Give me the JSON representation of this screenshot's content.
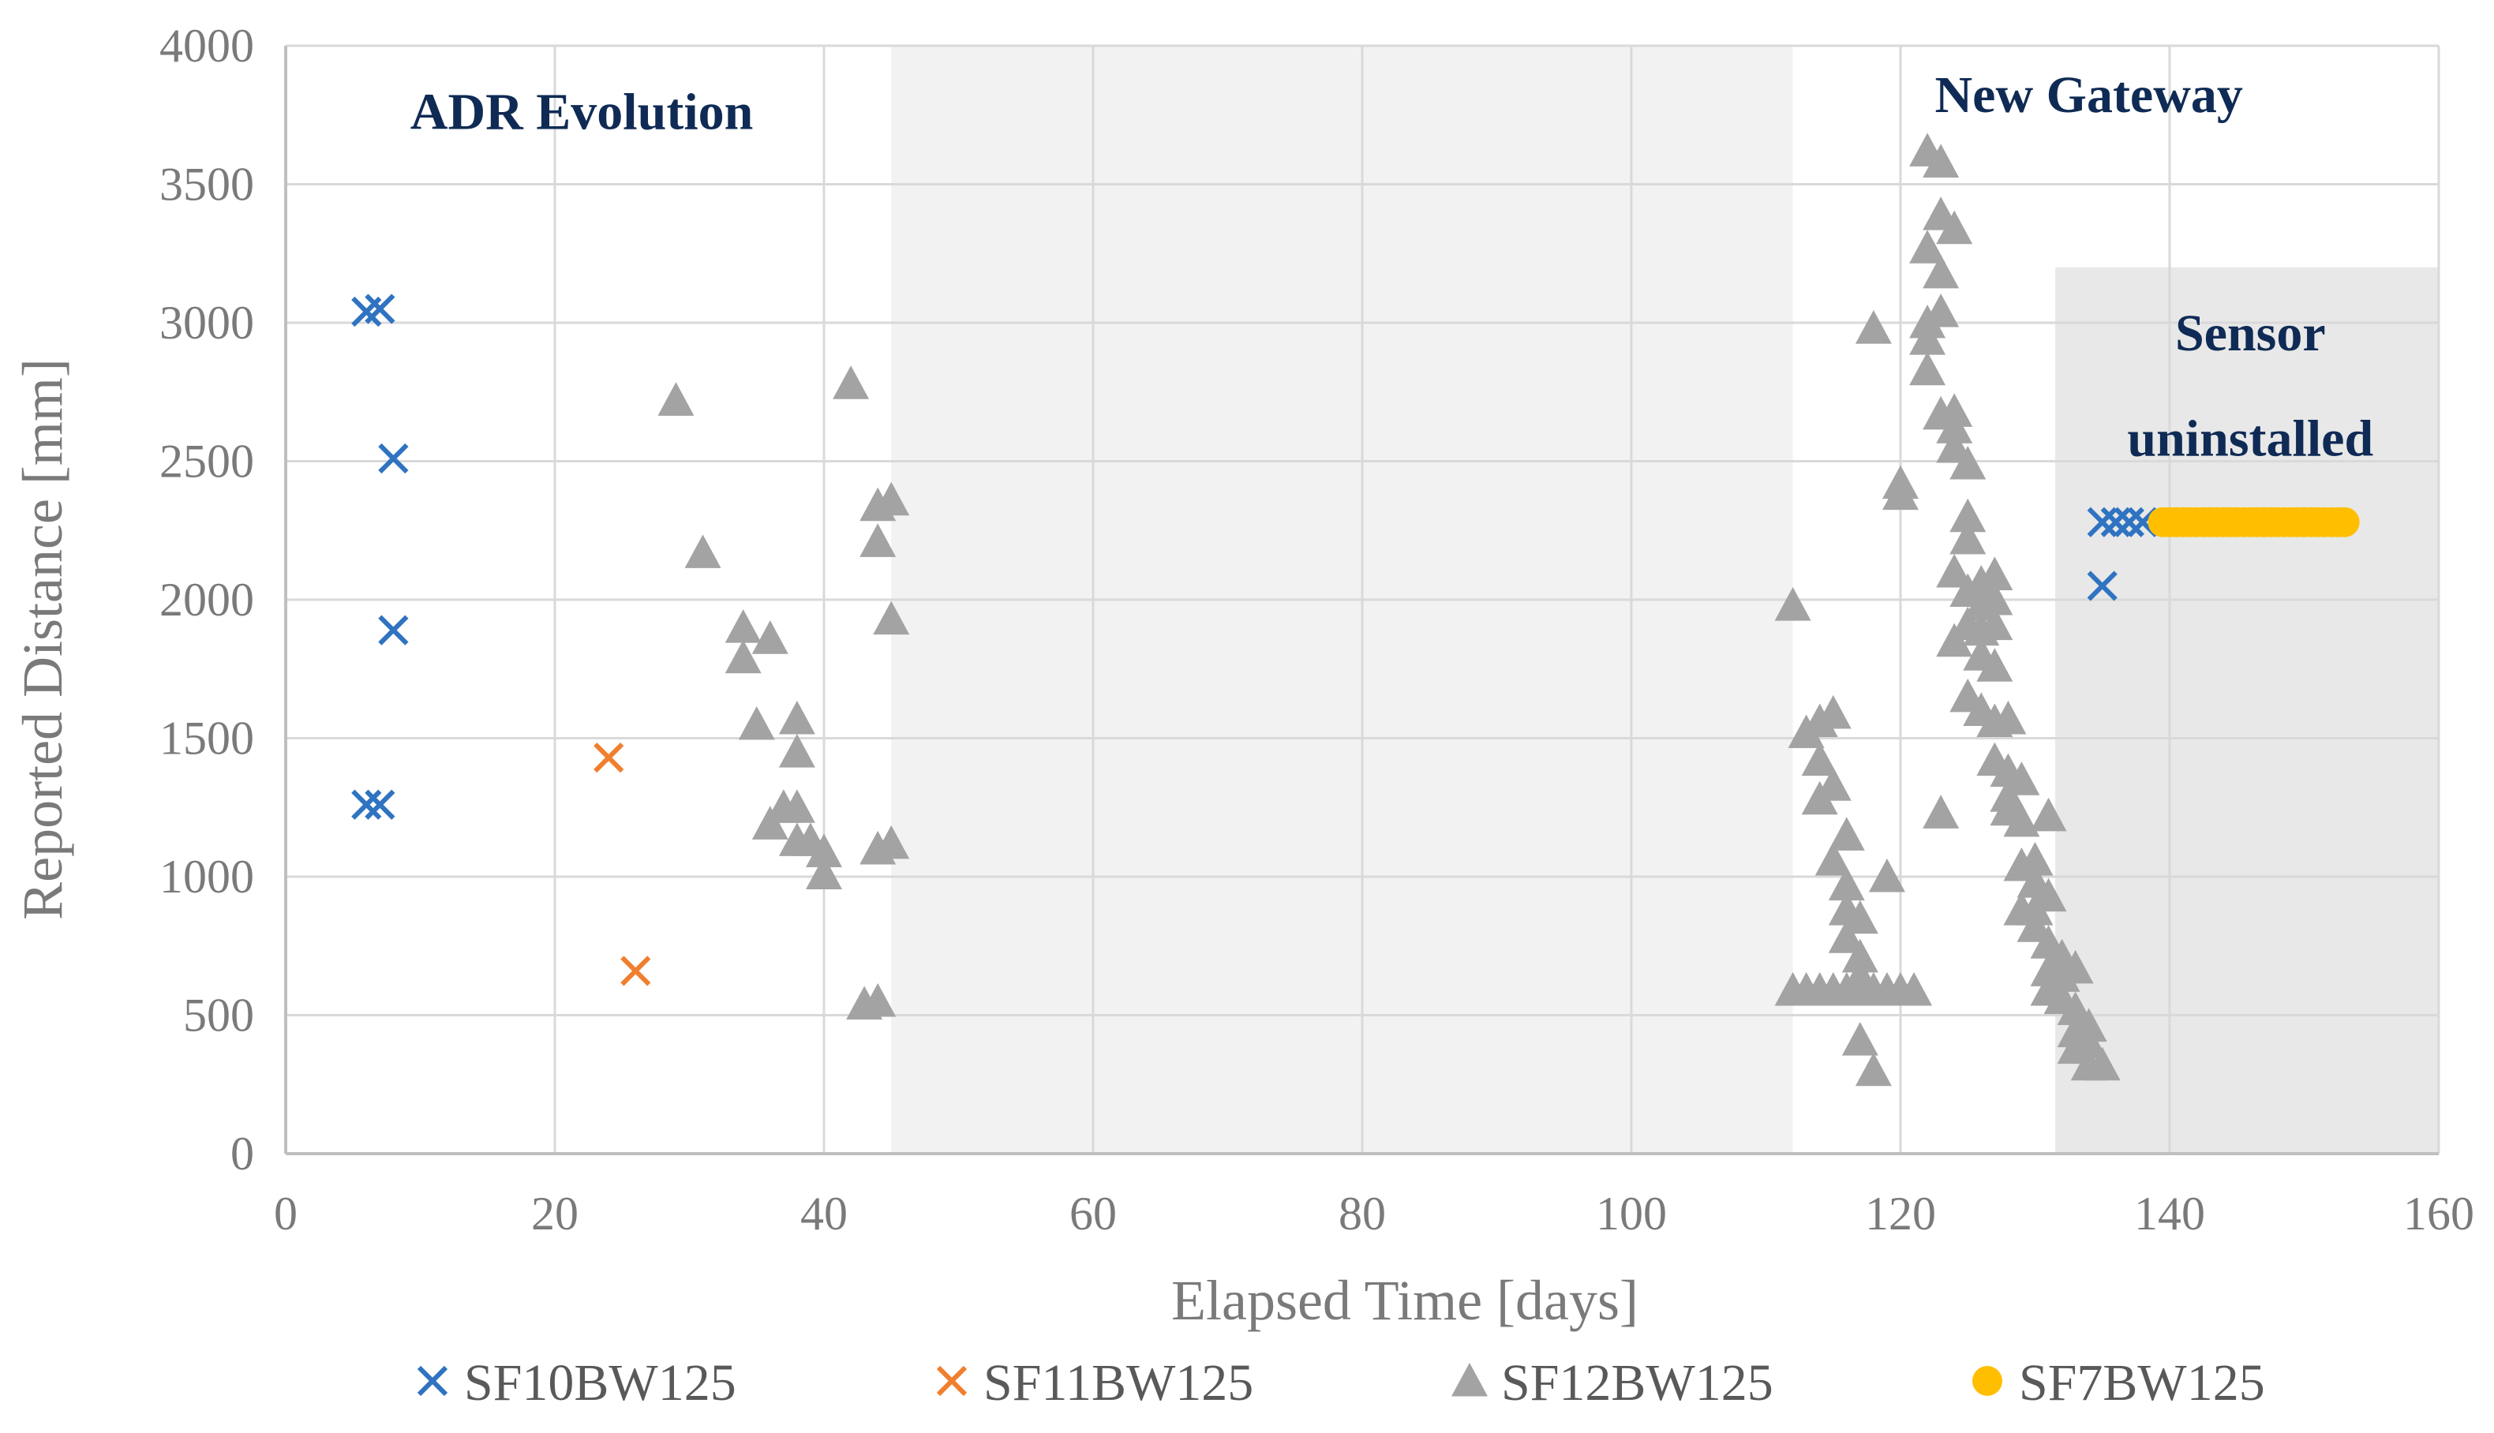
{
  "chart_data": {
    "type": "scatter",
    "xlabel": "Elapsed Time [days]",
    "ylabel": "Reported Distance [mm]",
    "xlim": [
      0,
      160
    ],
    "ylim": [
      0,
      4000
    ],
    "x_ticks": [
      0,
      20,
      40,
      60,
      80,
      100,
      120,
      140,
      160
    ],
    "y_ticks": [
      0,
      500,
      1000,
      1500,
      2000,
      2500,
      3000,
      3500,
      4000
    ],
    "grid": true,
    "legend_position": "bottom",
    "shaded_regions": [
      {
        "x": [
          45,
          112
        ],
        "y": [
          0,
          4000
        ],
        "color": "#f2f2f2"
      },
      {
        "x": [
          131.5,
          160
        ],
        "y": [
          0,
          3200
        ],
        "color": "#e8e8e8"
      }
    ],
    "annotations": [
      {
        "text": "ADR Evolution",
        "x": 22,
        "y": 3700
      },
      {
        "text": "New Gateway",
        "x": 134,
        "y": 3760
      },
      {
        "text": "Sensor",
        "x": 146,
        "y": 2900
      },
      {
        "text": "uninstalled",
        "x": 146,
        "y": 2520
      }
    ],
    "series": [
      {
        "name": "SF10BW125",
        "marker": "x",
        "color": "#2f73c1",
        "points": [
          [
            6,
            3040
          ],
          [
            7,
            3050
          ],
          [
            8,
            2510
          ],
          [
            8,
            1890
          ],
          [
            6,
            1260
          ],
          [
            7,
            1260
          ],
          [
            135,
            2280
          ],
          [
            136,
            2280
          ],
          [
            137,
            2280
          ],
          [
            138,
            2280
          ],
          [
            135,
            2050
          ]
        ]
      },
      {
        "name": "SF11BW125",
        "marker": "x",
        "color": "#f07f2e",
        "points": [
          [
            24,
            1430
          ],
          [
            26,
            660
          ]
        ]
      },
      {
        "name": "SF12BW125",
        "marker": "triangle",
        "color": "#a3a3a3",
        "points": [
          [
            29,
            2720
          ],
          [
            31,
            2170
          ],
          [
            34,
            1900
          ],
          [
            34,
            1790
          ],
          [
            35,
            1550
          ],
          [
            36,
            1860
          ],
          [
            36,
            1190
          ],
          [
            37,
            1250
          ],
          [
            38,
            1570
          ],
          [
            38,
            1450
          ],
          [
            38,
            1250
          ],
          [
            38,
            1130
          ],
          [
            39,
            1130
          ],
          [
            40,
            1090
          ],
          [
            40,
            1010
          ],
          [
            42,
            2780
          ],
          [
            43,
            540
          ],
          [
            44,
            550
          ],
          [
            44,
            2340
          ],
          [
            44,
            2210
          ],
          [
            44,
            1100
          ],
          [
            45,
            2360
          ],
          [
            45,
            1930
          ],
          [
            45,
            1120
          ],
          [
            112,
            1980
          ],
          [
            112,
            590
          ],
          [
            113,
            590
          ],
          [
            113,
            1520
          ],
          [
            114,
            1560
          ],
          [
            114,
            1420
          ],
          [
            114,
            1280
          ],
          [
            114,
            590
          ],
          [
            115,
            1590
          ],
          [
            115,
            1330
          ],
          [
            115,
            1060
          ],
          [
            115,
            590
          ],
          [
            116,
            1150
          ],
          [
            116,
            970
          ],
          [
            116,
            880
          ],
          [
            116,
            780
          ],
          [
            116,
            590
          ],
          [
            117,
            850
          ],
          [
            117,
            710
          ],
          [
            117,
            640
          ],
          [
            117,
            590
          ],
          [
            117,
            410
          ],
          [
            118,
            300
          ],
          [
            118,
            2980
          ],
          [
            118,
            590
          ],
          [
            119,
            1000
          ],
          [
            119,
            590
          ],
          [
            120,
            2420
          ],
          [
            120,
            2380
          ],
          [
            120,
            590
          ],
          [
            121,
            590
          ],
          [
            122,
            3620
          ],
          [
            122,
            3270
          ],
          [
            122,
            3000
          ],
          [
            122,
            2940
          ],
          [
            122,
            2830
          ],
          [
            123,
            3580
          ],
          [
            123,
            3390
          ],
          [
            123,
            3180
          ],
          [
            123,
            3040
          ],
          [
            123,
            2670
          ],
          [
            123,
            1230
          ],
          [
            124,
            3340
          ],
          [
            124,
            2680
          ],
          [
            124,
            2620
          ],
          [
            124,
            2550
          ],
          [
            124,
            2100
          ],
          [
            124,
            1850
          ],
          [
            125,
            2490
          ],
          [
            125,
            2300
          ],
          [
            125,
            2220
          ],
          [
            125,
            2030
          ],
          [
            125,
            1910
          ],
          [
            125,
            1650
          ],
          [
            126,
            2060
          ],
          [
            126,
            1980
          ],
          [
            126,
            1890
          ],
          [
            126,
            1800
          ],
          [
            126,
            1600
          ],
          [
            127,
            2090
          ],
          [
            127,
            2000
          ],
          [
            127,
            1910
          ],
          [
            127,
            1760
          ],
          [
            127,
            1560
          ],
          [
            127,
            1420
          ],
          [
            128,
            1570
          ],
          [
            128,
            1380
          ],
          [
            128,
            1290
          ],
          [
            128,
            1240
          ],
          [
            129,
            1350
          ],
          [
            129,
            1200
          ],
          [
            129,
            1040
          ],
          [
            129,
            880
          ],
          [
            130,
            1060
          ],
          [
            130,
            980
          ],
          [
            130,
            880
          ],
          [
            130,
            820
          ],
          [
            131,
            1220
          ],
          [
            131,
            930
          ],
          [
            131,
            760
          ],
          [
            131,
            660
          ],
          [
            131,
            590
          ],
          [
            132,
            710
          ],
          [
            132,
            640
          ],
          [
            132,
            560
          ],
          [
            133,
            670
          ],
          [
            133,
            520
          ],
          [
            133,
            440
          ],
          [
            133,
            380
          ],
          [
            134,
            460
          ],
          [
            134,
            400
          ],
          [
            134,
            320
          ],
          [
            135,
            320
          ]
        ]
      },
      {
        "name": "SF7BW125",
        "marker": "circle",
        "color": "#ffbf00",
        "points": [
          [
            139.5,
            2280
          ],
          [
            140,
            2280
          ],
          [
            140.5,
            2280
          ],
          [
            141,
            2280
          ],
          [
            141.5,
            2280
          ],
          [
            142,
            2280
          ],
          [
            142.5,
            2280
          ],
          [
            143,
            2280
          ],
          [
            143.5,
            2280
          ],
          [
            144,
            2280
          ],
          [
            144.5,
            2280
          ],
          [
            145,
            2280
          ],
          [
            145.5,
            2280
          ],
          [
            146,
            2280
          ],
          [
            146.5,
            2280
          ],
          [
            147,
            2280
          ],
          [
            147.5,
            2280
          ],
          [
            148,
            2280
          ],
          [
            148.5,
            2280
          ],
          [
            149,
            2280
          ],
          [
            149.5,
            2280
          ],
          [
            150,
            2280
          ],
          [
            150.5,
            2280
          ],
          [
            151,
            2280
          ],
          [
            151.5,
            2280
          ],
          [
            152,
            2280
          ],
          [
            152.5,
            2280
          ],
          [
            153,
            2280
          ]
        ]
      }
    ]
  }
}
